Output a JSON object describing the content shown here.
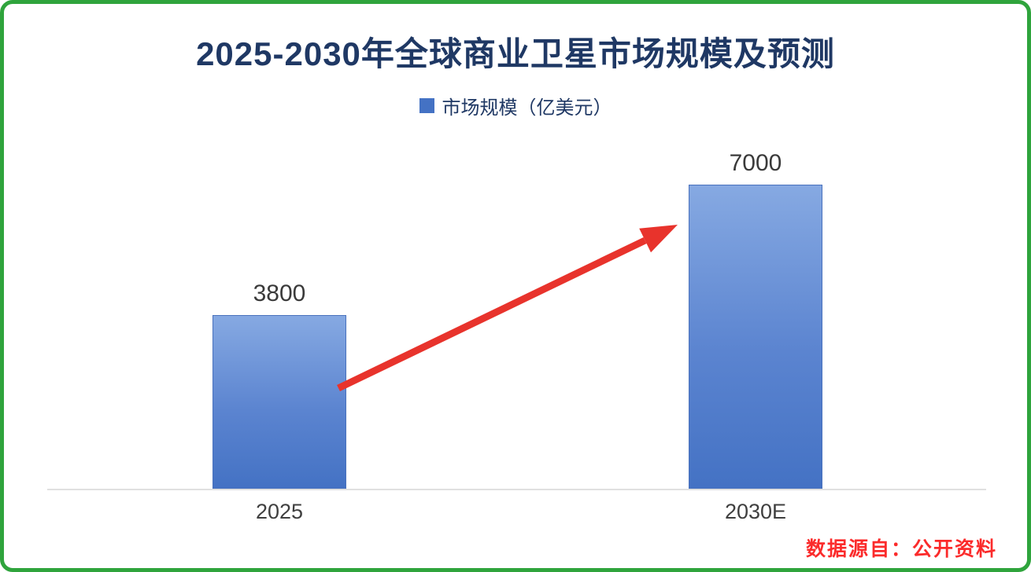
{
  "chart_data": {
    "type": "bar",
    "title": "2025-2030年全球商业卫星市场规模及预测",
    "categories": [
      "2025",
      "2030E"
    ],
    "series": [
      {
        "name": "市场规模（亿美元）",
        "values": [
          3800,
          7000
        ]
      }
    ],
    "xlabel": "",
    "ylabel": "",
    "ylim": [
      0,
      7400
    ],
    "grid": false,
    "legend_position": "top",
    "annotations": [
      "red growth arrow pointing from the 2025 bar up to the 2030E bar"
    ]
  },
  "source_note": "数据源自：公开资料",
  "colors": {
    "title_text": "#1f3864",
    "bar_top": "#86a9e2",
    "bar_bottom": "#4472c4",
    "legend_swatch": "#4472c4",
    "frame_border_green": "#2fa43c",
    "arrow_red": "#e8332c",
    "source_text_red": "#fb2b2b",
    "axis_gray": "#e0e0e0",
    "label_text": "#3a3a3a"
  }
}
